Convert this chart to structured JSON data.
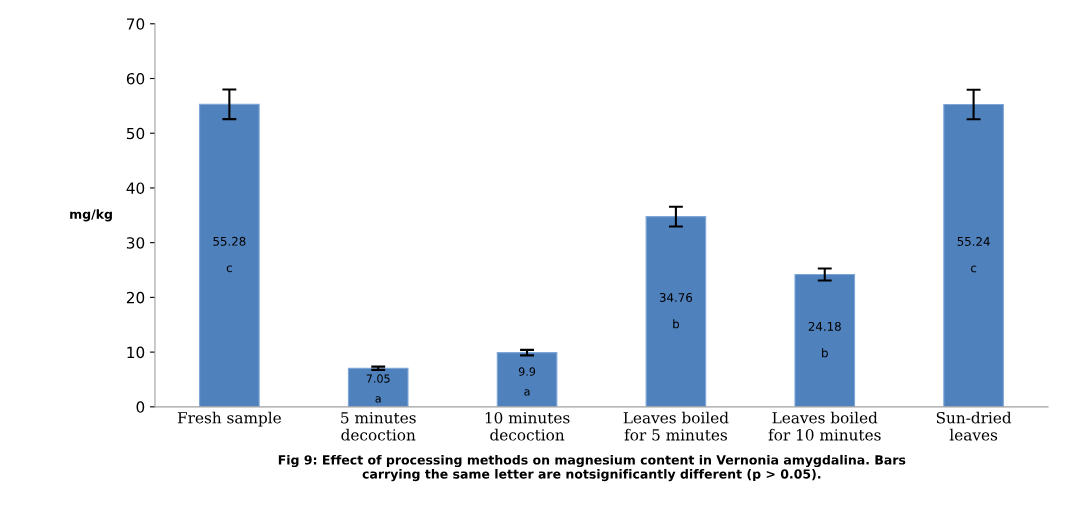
{
  "chart_data": {
    "type": "bar",
    "ylabel": "mg/kg",
    "categories": [
      "Fresh sample",
      "5 minutes\ndecoction",
      "10 minutes\ndecoction",
      "Leaves boiled\nfor 5 minutes",
      "Leaves boiled\nfor 10 minutes",
      "Sun-dried\nleaves"
    ],
    "values": [
      55.28,
      7.05,
      9.9,
      34.76,
      24.18,
      55.24
    ],
    "errors": [
      2.7,
      0.3,
      0.5,
      1.8,
      1.1,
      2.7
    ],
    "color": "#4f81bd",
    "value_labels": [
      "55.28\n\nc",
      "7.05\n\na",
      "9.9\n\na",
      "34.76\n\nb",
      "24.18\n\nb",
      "55.24\n\nc"
    ],
    "ylim": [
      0,
      70
    ],
    "yticks": [
      0,
      10,
      20,
      30,
      40,
      50,
      60,
      70
    ],
    "grid": false,
    "annotations": [
      "Fig 9: Effect of processing methods on magnesium content in Vernonia amygdalina. Bars\ncarrying the same letter are notsignificantly different (p > 0.05)."
    ]
  }
}
